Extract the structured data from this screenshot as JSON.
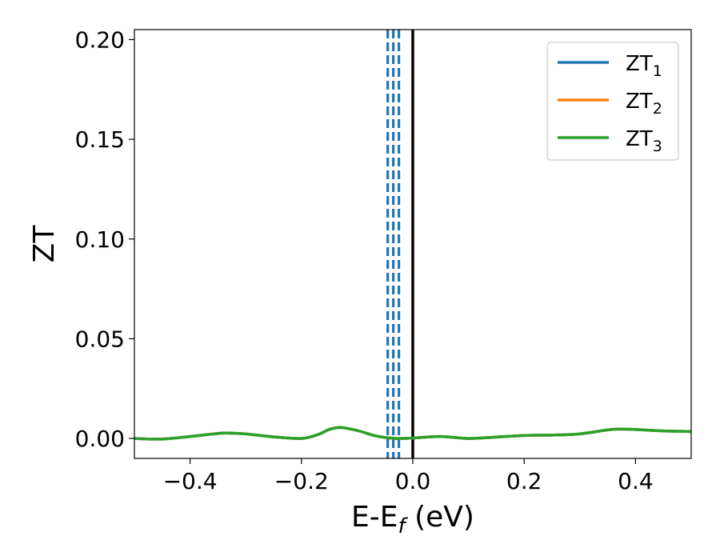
{
  "chart_data": {
    "type": "line",
    "title": "",
    "xlabel": "E-E",
    "xlabel_sub": "f",
    "xlabel_unit": " (eV)",
    "ylabel": "ZT",
    "xlim": [
      -0.5,
      0.5
    ],
    "ylim": [
      -0.01,
      0.205
    ],
    "grid": false,
    "legend_position": "top-right",
    "x_ticks": [
      -0.4,
      -0.2,
      0.0,
      0.2,
      0.4
    ],
    "x_tick_labels": [
      "−0.4",
      "−0.2",
      "0.0",
      "0.2",
      "0.4"
    ],
    "y_ticks": [
      0.0,
      0.05,
      0.1,
      0.15,
      0.2
    ],
    "y_tick_labels": [
      "0.00",
      "0.05",
      "0.10",
      "0.15",
      "0.20"
    ],
    "vertical_lines": [
      {
        "x": -0.045,
        "style": "dashed",
        "color": "#1f77b4"
      },
      {
        "x": -0.035,
        "style": "dashed",
        "color": "#1f77b4"
      },
      {
        "x": -0.025,
        "style": "dashed",
        "color": "#1f77b4"
      },
      {
        "x": 0.0,
        "style": "solid",
        "color": "#000000"
      }
    ],
    "x": [
      -0.5,
      -0.45,
      -0.4,
      -0.35,
      -0.33,
      -0.3,
      -0.25,
      -0.2,
      -0.17,
      -0.15,
      -0.13,
      -0.1,
      -0.07,
      -0.05,
      -0.03,
      0.0,
      0.05,
      0.1,
      0.15,
      0.2,
      0.25,
      0.3,
      0.35,
      0.37,
      0.4,
      0.45,
      0.5
    ],
    "series": [
      {
        "name": "ZT",
        "sub": "1",
        "color": "#1f77b4",
        "values": [
          0.0,
          -0.0003,
          0.001,
          0.0025,
          0.0027,
          0.0023,
          0.0008,
          0.0,
          0.002,
          0.0045,
          0.0055,
          0.004,
          0.0015,
          0.0005,
          0.0,
          0.0002,
          0.001,
          0.0,
          0.0007,
          0.0015,
          0.0017,
          0.0023,
          0.0043,
          0.0047,
          0.0045,
          0.0038,
          0.0035
        ]
      },
      {
        "name": "ZT",
        "sub": "2",
        "color": "#ff7f0e",
        "values": [
          0.0,
          -0.0003,
          0.001,
          0.0025,
          0.0027,
          0.0023,
          0.0008,
          0.0,
          0.002,
          0.0045,
          0.0055,
          0.004,
          0.0015,
          0.0005,
          0.0,
          0.0002,
          0.001,
          0.0,
          0.0007,
          0.0015,
          0.0017,
          0.0023,
          0.0043,
          0.0047,
          0.0045,
          0.0038,
          0.0035
        ]
      },
      {
        "name": "ZT",
        "sub": "3",
        "color": "#2ca02c",
        "values": [
          0.0,
          -0.0003,
          0.001,
          0.0025,
          0.0027,
          0.0023,
          0.0008,
          0.0,
          0.002,
          0.0045,
          0.0055,
          0.004,
          0.0015,
          0.0005,
          0.0,
          0.0002,
          0.001,
          0.0,
          0.0007,
          0.0015,
          0.0017,
          0.0023,
          0.0043,
          0.0047,
          0.0045,
          0.0038,
          0.0035
        ]
      }
    ]
  }
}
